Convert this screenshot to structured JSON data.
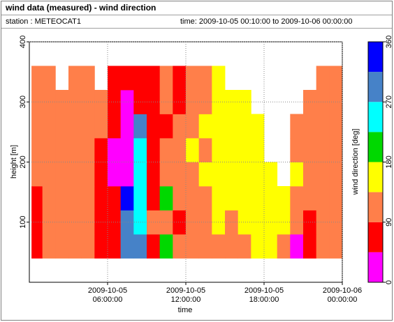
{
  "chart_data": {
    "type": "heatmap",
    "title": "wind data (measured) - wind direction",
    "station": "station : METEOCAT1",
    "period": "time: 2009-10-05 00:10:00 to 2009-10-06 00:00:00",
    "xlabel": "time",
    "ylabel": "height [m]",
    "colorbar_label": "wind direction [deg]",
    "xlim": [
      "2009-10-05 00:00:00",
      "2009-10-06 00:00:00"
    ],
    "xticks": [
      "2009-10-05 06:00:00",
      "2009-10-05 12:00:00",
      "2009-10-05 18:00:00",
      "2009-10-06 00:00:00"
    ],
    "ylim": [
      0,
      400
    ],
    "yticks": [
      100,
      200,
      300,
      400
    ],
    "grid": true,
    "xbins": [
      "2009-10-05 00:10:00",
      "2009-10-05 01:00:00",
      "2009-10-05 02:00:00",
      "2009-10-05 03:00:00",
      "2009-10-05 04:00:00",
      "2009-10-05 05:00:00",
      "2009-10-05 06:00:00",
      "2009-10-05 07:00:00",
      "2009-10-05 08:00:00",
      "2009-10-05 09:00:00",
      "2009-10-05 10:00:00",
      "2009-10-05 11:00:00",
      "2009-10-05 12:00:00",
      "2009-10-05 13:00:00",
      "2009-10-05 14:00:00",
      "2009-10-05 15:00:00",
      "2009-10-05 16:00:00",
      "2009-10-05 17:00:00",
      "2009-10-05 18:00:00",
      "2009-10-05 19:00:00",
      "2009-10-05 20:00:00",
      "2009-10-05 21:00:00",
      "2009-10-05 22:00:00",
      "2009-10-05 23:00:00",
      "2009-10-06 00:00:00"
    ],
    "ybins": [
      40,
      80,
      120,
      160,
      200,
      240,
      280,
      320,
      360
    ],
    "values": [
      [
        70,
        110,
        110,
        110,
        110,
        70,
        70,
        290,
        290,
        70,
        200,
        110,
        110,
        110,
        110,
        110,
        110,
        160,
        160,
        110,
        20,
        70,
        110,
        110
      ],
      [
        70,
        110,
        110,
        110,
        110,
        70,
        70,
        290,
        250,
        110,
        110,
        70,
        110,
        110,
        160,
        110,
        160,
        160,
        160,
        160,
        110,
        70,
        110,
        110
      ],
      [
        70,
        110,
        110,
        110,
        110,
        70,
        70,
        340,
        250,
        70,
        200,
        110,
        110,
        110,
        160,
        160,
        160,
        160,
        160,
        160,
        110,
        110,
        110,
        110
      ],
      [
        110,
        110,
        110,
        110,
        110,
        70,
        20,
        20,
        250,
        70,
        110,
        110,
        110,
        160,
        160,
        160,
        160,
        160,
        160,
        null,
        160,
        110,
        110,
        110
      ],
      [
        110,
        110,
        110,
        110,
        110,
        70,
        20,
        20,
        250,
        70,
        110,
        110,
        160,
        110,
        160,
        160,
        160,
        160,
        null,
        null,
        110,
        110,
        110,
        110
      ],
      [
        110,
        110,
        110,
        110,
        110,
        110,
        70,
        20,
        290,
        70,
        70,
        110,
        110,
        160,
        160,
        160,
        160,
        160,
        null,
        null,
        110,
        110,
        110,
        110
      ],
      [
        110,
        110,
        110,
        110,
        110,
        110,
        70,
        20,
        70,
        70,
        110,
        70,
        110,
        110,
        160,
        160,
        160,
        null,
        null,
        null,
        null,
        110,
        110,
        110
      ],
      [
        110,
        110,
        null,
        110,
        110,
        null,
        70,
        70,
        70,
        70,
        110,
        70,
        110,
        110,
        160,
        null,
        null,
        null,
        null,
        null,
        null,
        null,
        110,
        110
      ]
    ],
    "colorscale": {
      "bounds": [
        0,
        45,
        90,
        135,
        180,
        225,
        270,
        315,
        360
      ],
      "colors": [
        "#ff00ff",
        "#ff0000",
        "#ff7f4a",
        "#ffff00",
        "#00d800",
        "#00ffff",
        "#4682c8",
        "#0000ff"
      ]
    },
    "cticks": [
      0,
      90,
      180,
      270,
      360
    ]
  }
}
